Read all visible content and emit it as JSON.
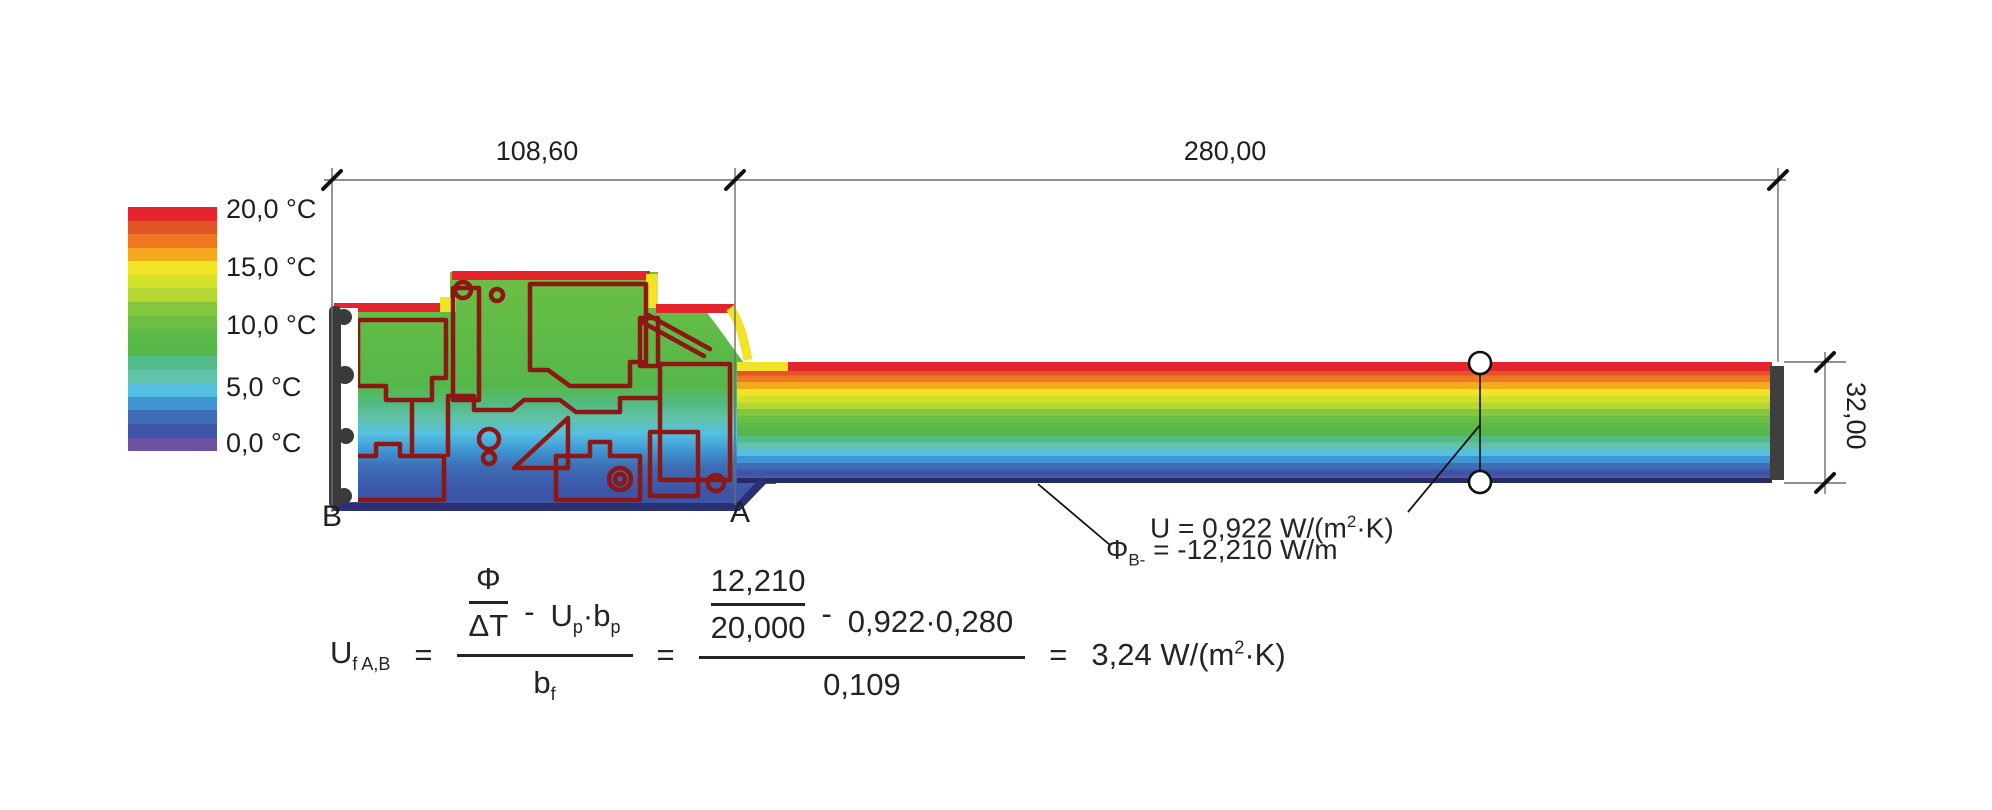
{
  "legend": {
    "bands": [
      "#e4252b",
      "#e25426",
      "#ef7623",
      "#f5a91d",
      "#f1e426",
      "#d3e02a",
      "#b4d733",
      "#84c63e",
      "#6cbf44",
      "#5eba48",
      "#55b74a",
      "#53bb88",
      "#62c3ad",
      "#53c0e2",
      "#3f96d2",
      "#3e6cb5",
      "#3c55a8",
      "#6b52a2"
    ],
    "labels": [
      "20,0 °C",
      "15,0 °C",
      "10,0 °C",
      "5,0 °C",
      "0,0 °C"
    ]
  },
  "dimensions": {
    "frame_width": "108,60",
    "panel_width": "280,00",
    "panel_thickness": "32,00"
  },
  "markers": {
    "a": "A",
    "b": "B"
  },
  "annotations": {
    "u_panel": {
      "prefix": "U = 0,922 W/(m",
      "sup": "2",
      "suffix": "·K)"
    },
    "phi": {
      "symbol": "Φ",
      "sub": "B-",
      "rest": " = -12,210 W/m"
    }
  },
  "formula": {
    "lhs_base": "U",
    "lhs_sub": "f A,B",
    "eq": "=",
    "sym_num_top": "Φ",
    "sym_num_bottom": "ΔT",
    "minus": "-",
    "sym_u": "U",
    "sym_u_sub": "p",
    "dot": "·",
    "sym_b": "b",
    "sym_b_sub": "p",
    "sym_den_base": "b",
    "sym_den_sub": "f",
    "val_num_top": "12,210",
    "val_num_bottom": "20,000",
    "val_term": "0,922·0,280",
    "val_den": "0,109",
    "result_prefix": "3,24 W/(m",
    "result_sup": "2",
    "result_suffix": "·K)"
  },
  "colors": {
    "chamber_outline": "#8d1712",
    "hot_red": "#e4252b",
    "warm_yellow": "#f1e426",
    "cold_navy": "#262c63",
    "gasket_gray": "#3a3a3a",
    "dimension_line": "#6b6b6b",
    "text": "#1f1f1f"
  }
}
